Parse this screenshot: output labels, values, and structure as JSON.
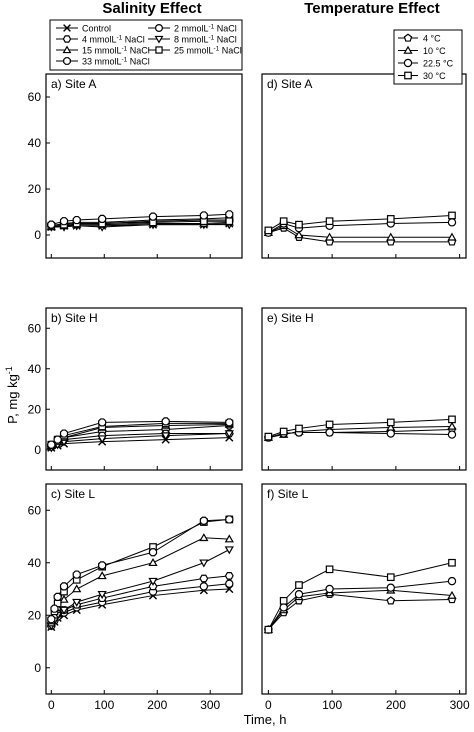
{
  "figure": {
    "left_title": "Salinity Effect",
    "right_title": "Temperature Effect",
    "ylabel_main": "P, mg kg",
    "ylabel_sup": "-1",
    "xlabel": "Time, h"
  },
  "legend_salinity": [
    {
      "marker": "x",
      "pre": "Control",
      "sup": "",
      "post": ""
    },
    {
      "marker": "circle",
      "pre": "2 mmolL",
      "sup": "-1",
      "post": " NaCl"
    },
    {
      "marker": "hexagon",
      "pre": "4 mmolL",
      "sup": "-1",
      "post": " NaCl"
    },
    {
      "marker": "triangle-down",
      "pre": "8 mmolL",
      "sup": "-1",
      "post": " NaCl"
    },
    {
      "marker": "triangle-up",
      "pre": "15 mmolL",
      "sup": "-1",
      "post": " NaCl"
    },
    {
      "marker": "square",
      "pre": "25 mmolL",
      "sup": "-1",
      "post": " NaCl"
    },
    {
      "marker": "octagon",
      "pre": "33 mmolL",
      "sup": "-1",
      "post": " NaCl"
    }
  ],
  "legend_temperature": [
    {
      "marker": "pentagon",
      "label": "4 °C"
    },
    {
      "marker": "triangle-up",
      "label": "10 °C"
    },
    {
      "marker": "circle",
      "label": "22.5 °C"
    },
    {
      "marker": "square",
      "label": "30 °C"
    }
  ],
  "chart_data": [
    {
      "type": "line",
      "title": "a) Site A",
      "column": "salinity",
      "xlabel": "",
      "ylabel": "",
      "xlim": [
        -10,
        360
      ],
      "ylim": [
        -10,
        70
      ],
      "xticks": [
        0,
        100,
        200,
        300
      ],
      "yticks": [
        0,
        20,
        40,
        60
      ],
      "series": [
        {
          "name": "Control",
          "marker": "x",
          "x": [
            0,
            24,
            48,
            96,
            192,
            288,
            336
          ],
          "y": [
            3.5,
            4,
            4,
            4,
            4.5,
            4.5,
            5
          ]
        },
        {
          "name": "2 mmolL-1 NaCl",
          "marker": "circle",
          "x": [
            0,
            24,
            48,
            96,
            192,
            288,
            336
          ],
          "y": [
            4,
            5,
            5.5,
            5.5,
            6.5,
            7,
            7.5
          ]
        },
        {
          "name": "4 mmolL-1 NaCl",
          "marker": "hexagon",
          "x": [
            0,
            24,
            48,
            96,
            192,
            288,
            336
          ],
          "y": [
            4,
            4.5,
            5,
            5,
            6,
            6.5,
            6.5
          ]
        },
        {
          "name": "8 mmolL-1 NaCl",
          "marker": "triangle-down",
          "x": [
            0,
            24,
            48,
            96,
            192,
            288,
            336
          ],
          "y": [
            3.5,
            3.5,
            4,
            3.5,
            4.5,
            4.5,
            4.5
          ]
        },
        {
          "name": "15 mmolL-1 NaCl",
          "marker": "triangle-up",
          "x": [
            0,
            24,
            48,
            96,
            192,
            288,
            336
          ],
          "y": [
            3.5,
            4,
            4.5,
            4.5,
            5,
            5,
            5.5
          ]
        },
        {
          "name": "25 mmolL-1 NaCl",
          "marker": "square",
          "x": [
            0,
            24,
            48,
            96,
            192,
            288,
            336
          ],
          "y": [
            4,
            4.5,
            5,
            5,
            5.5,
            6,
            6
          ]
        },
        {
          "name": "33 mmolL-1 NaCl",
          "marker": "octagon",
          "x": [
            0,
            24,
            48,
            96,
            192,
            288,
            336
          ],
          "y": [
            4.5,
            6,
            6.5,
            7,
            8,
            8.5,
            9
          ]
        }
      ]
    },
    {
      "type": "line",
      "title": "d) Site A",
      "column": "temperature",
      "xlabel": "",
      "ylabel": "",
      "xlim": [
        -10,
        310
      ],
      "ylim": [
        -10,
        70
      ],
      "xticks": [
        0,
        100,
        200,
        300
      ],
      "yticks": [],
      "series": [
        {
          "name": "4 °C",
          "marker": "pentagon",
          "x": [
            0,
            24,
            48,
            96,
            192,
            288
          ],
          "y": [
            1,
            3,
            -1,
            -3,
            -3,
            -3
          ]
        },
        {
          "name": "10 °C",
          "marker": "triangle-up",
          "x": [
            0,
            24,
            48,
            96,
            192,
            288
          ],
          "y": [
            1,
            4,
            0,
            -1,
            -1,
            -1
          ]
        },
        {
          "name": "22.5 °C",
          "marker": "circle",
          "x": [
            0,
            24,
            48,
            96,
            192,
            288
          ],
          "y": [
            1,
            5,
            3,
            4,
            5,
            5.5
          ]
        },
        {
          "name": "30 °C",
          "marker": "square",
          "x": [
            0,
            24,
            48,
            96,
            192,
            288
          ],
          "y": [
            2,
            6,
            4.5,
            6,
            7,
            8.5
          ]
        }
      ]
    },
    {
      "type": "line",
      "title": "b) Site H",
      "column": "salinity",
      "xlabel": "",
      "ylabel": "",
      "xlim": [
        -10,
        360
      ],
      "ylim": [
        -10,
        70
      ],
      "xticks": [
        0,
        100,
        200,
        300
      ],
      "yticks": [
        0,
        20,
        40,
        60
      ],
      "series": [
        {
          "name": "Control",
          "marker": "x",
          "x": [
            0,
            12,
            24,
            96,
            216,
            336
          ],
          "y": [
            1,
            2,
            3,
            4,
            5,
            6
          ]
        },
        {
          "name": "2 mmolL-1 NaCl",
          "marker": "circle",
          "x": [
            0,
            12,
            24,
            96,
            216,
            336
          ],
          "y": [
            2,
            4,
            6,
            9,
            10,
            12
          ]
        },
        {
          "name": "4 mmolL-1 NaCl",
          "marker": "hexagon",
          "x": [
            0,
            12,
            24,
            96,
            216,
            336
          ],
          "y": [
            1.5,
            3.5,
            5,
            7,
            8,
            8
          ]
        },
        {
          "name": "8 mmolL-1 NaCl",
          "marker": "triangle-down",
          "x": [
            0,
            12,
            24,
            96,
            216,
            336
          ],
          "y": [
            1,
            2.5,
            4,
            5.5,
            7,
            8
          ]
        },
        {
          "name": "15 mmolL-1 NaCl",
          "marker": "triangle-up",
          "x": [
            0,
            12,
            24,
            96,
            216,
            336
          ],
          "y": [
            2,
            4,
            6,
            11,
            12,
            12.5
          ]
        },
        {
          "name": "25 mmolL-1 NaCl",
          "marker": "square",
          "x": [
            0,
            12,
            24,
            96,
            216,
            336
          ],
          "y": [
            2.5,
            5,
            7,
            11.5,
            13,
            13
          ]
        },
        {
          "name": "33 mmolL-1 NaCl",
          "marker": "octagon",
          "x": [
            0,
            12,
            24,
            96,
            216,
            336
          ],
          "y": [
            2.5,
            5,
            8,
            13.5,
            14,
            13.5
          ]
        }
      ]
    },
    {
      "type": "line",
      "title": "e) Site H",
      "column": "temperature",
      "xlabel": "",
      "ylabel": "",
      "xlim": [
        -10,
        310
      ],
      "ylim": [
        -10,
        70
      ],
      "xticks": [
        0,
        100,
        200,
        300
      ],
      "yticks": [],
      "series": [
        {
          "name": "4 °C",
          "marker": "pentagon",
          "x": [
            0,
            24,
            48,
            96,
            192,
            288
          ],
          "y": [
            6,
            8,
            8.5,
            8.5,
            9,
            10
          ]
        },
        {
          "name": "10 °C",
          "marker": "triangle-up",
          "x": [
            0,
            24,
            48,
            96,
            192,
            288
          ],
          "y": [
            6,
            7.5,
            9,
            10,
            11,
            11.5
          ]
        },
        {
          "name": "22.5 °C",
          "marker": "circle",
          "x": [
            0,
            24,
            48,
            96,
            192,
            288
          ],
          "y": [
            6,
            8,
            8.5,
            8.5,
            8,
            7.5
          ]
        },
        {
          "name": "30 °C",
          "marker": "square",
          "x": [
            0,
            24,
            48,
            96,
            192,
            288
          ],
          "y": [
            6.5,
            9,
            10.5,
            12.5,
            13.5,
            15
          ]
        }
      ]
    },
    {
      "type": "line",
      "title": "c) Site L",
      "column": "salinity",
      "xlabel": "",
      "ylabel": "",
      "xlim": [
        -10,
        360
      ],
      "ylim": [
        -10,
        70
      ],
      "xticks": [
        0,
        100,
        200,
        300
      ],
      "yticks": [
        0,
        20,
        40,
        60
      ],
      "series": [
        {
          "name": "Control",
          "marker": "x",
          "x": [
            0,
            6,
            12,
            24,
            48,
            96,
            192,
            288,
            336
          ],
          "y": [
            15.5,
            17.5,
            19,
            20,
            22,
            24,
            27.5,
            29.5,
            30
          ]
        },
        {
          "name": "2 mmolL-1 NaCl",
          "marker": "circle",
          "x": [
            0,
            6,
            12,
            24,
            48,
            96,
            192,
            288,
            336
          ],
          "y": [
            16,
            18,
            19.5,
            21,
            23,
            25,
            29,
            31,
            32
          ]
        },
        {
          "name": "4 mmolL-1 NaCl",
          "marker": "hexagon",
          "x": [
            0,
            6,
            12,
            24,
            48,
            96,
            192,
            288,
            336
          ],
          "y": [
            17,
            19,
            20.5,
            22,
            24,
            26.5,
            31,
            34,
            35
          ]
        },
        {
          "name": "8 mmolL-1 NaCl",
          "marker": "triangle-down",
          "x": [
            0,
            6,
            12,
            24,
            48,
            96,
            192,
            288,
            336
          ],
          "y": [
            16,
            18,
            20,
            22,
            25,
            28,
            33,
            40,
            45
          ]
        },
        {
          "name": "15 mmolL-1 NaCl",
          "marker": "triangle-up",
          "x": [
            0,
            6,
            12,
            24,
            48,
            96,
            192,
            288,
            336
          ],
          "y": [
            17,
            20,
            23,
            26,
            30,
            35,
            40,
            49.5,
            49
          ]
        },
        {
          "name": "25 mmolL-1 NaCl",
          "marker": "square",
          "x": [
            0,
            6,
            12,
            24,
            48,
            96,
            192,
            288,
            336
          ],
          "y": [
            18,
            21.5,
            24.5,
            29,
            33.5,
            38.5,
            46,
            55.5,
            56.5
          ]
        },
        {
          "name": "33 mmolL-1 NaCl",
          "marker": "octagon",
          "x": [
            0,
            6,
            12,
            24,
            48,
            96,
            192,
            288,
            336
          ],
          "y": [
            18.5,
            22.5,
            27,
            31,
            35.5,
            39,
            44,
            56,
            56.5
          ]
        }
      ]
    },
    {
      "type": "line",
      "title": "f) Site L",
      "column": "temperature",
      "xlabel": "",
      "ylabel": "",
      "xlim": [
        -10,
        310
      ],
      "ylim": [
        -10,
        70
      ],
      "xticks": [
        0,
        100,
        200,
        300
      ],
      "yticks": [],
      "series": [
        {
          "name": "4 °C",
          "marker": "pentagon",
          "x": [
            0,
            24,
            48,
            96,
            192,
            288
          ],
          "y": [
            14.5,
            21,
            25.5,
            28,
            25.5,
            26
          ]
        },
        {
          "name": "10 °C",
          "marker": "triangle-up",
          "x": [
            0,
            24,
            48,
            96,
            192,
            288
          ],
          "y": [
            14.5,
            22,
            27,
            28.5,
            29.5,
            27.5
          ]
        },
        {
          "name": "22.5 °C",
          "marker": "circle",
          "x": [
            0,
            24,
            48,
            96,
            192,
            288
          ],
          "y": [
            14.5,
            23,
            28,
            30,
            30.5,
            33
          ]
        },
        {
          "name": "30 °C",
          "marker": "square",
          "x": [
            0,
            24,
            48,
            96,
            192,
            288
          ],
          "y": [
            14.5,
            25.5,
            31.5,
            37.5,
            34.5,
            40
          ]
        }
      ]
    }
  ]
}
